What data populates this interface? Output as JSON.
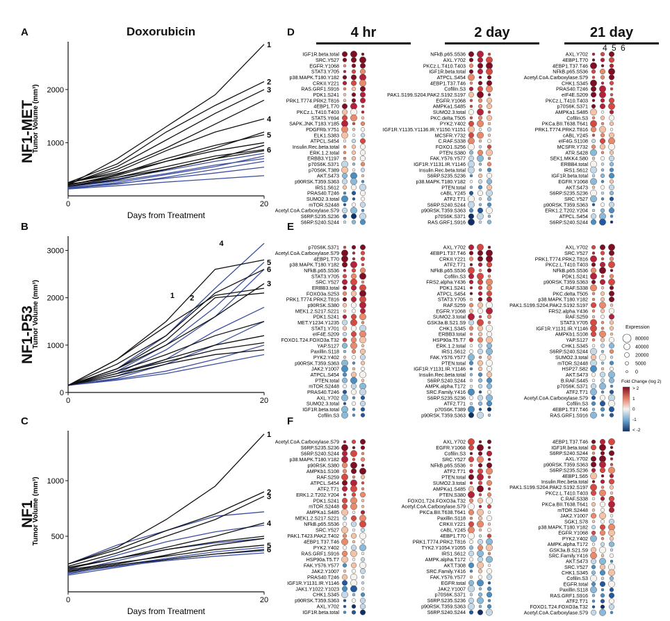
{
  "figure": {
    "plot_title": "Doxorubicin",
    "panel_letters": [
      "A",
      "B",
      "C",
      "D",
      "E",
      "F"
    ],
    "row_titles": [
      "NF1-MET",
      "NF1-P53",
      "NF1"
    ],
    "column_titles": [
      "4 hr",
      "2 day",
      "21 day"
    ],
    "sample_numbers": [
      "4",
      "5",
      "6"
    ],
    "line_color_blue": "#3c4fa0",
    "line_color_black": "#111111"
  },
  "chart_data": [
    {
      "type": "line",
      "panel": "A",
      "title": "Doxorubicin",
      "row_title": "NF1-MET",
      "xlabel": "Days from Treatment",
      "ylabel": "Tumor Volume (mm³)",
      "xlim": [
        0,
        20
      ],
      "ylim": [
        0,
        2900
      ],
      "xticks": [
        0,
        20
      ],
      "yticks": [
        1000,
        2000
      ],
      "series_x": [
        0,
        5,
        10,
        15,
        20
      ],
      "labeled_ends": [
        {
          "label": "1",
          "value": 2850
        },
        {
          "label": "2",
          "value": 2150
        },
        {
          "label": "3",
          "value": 2000
        },
        {
          "label": "4",
          "value": 1450
        },
        {
          "label": "5",
          "value": 1150
        },
        {
          "label": "6",
          "value": 870
        }
      ],
      "black_series": [
        [
          200,
          700,
          1300,
          1900,
          2850
        ],
        [
          250,
          600,
          1200,
          1700,
          2150
        ],
        [
          220,
          550,
          1050,
          1550,
          2000
        ],
        [
          250,
          450,
          850,
          1200,
          1450
        ],
        [
          200,
          400,
          700,
          950,
          1150
        ],
        [
          180,
          350,
          550,
          750,
          870
        ],
        [
          230,
          500,
          900,
          1350,
          1800
        ],
        [
          200,
          380,
          650,
          900,
          1200
        ],
        [
          180,
          300,
          500,
          700,
          950
        ],
        [
          250,
          420,
          650,
          850,
          1000
        ],
        [
          220,
          350,
          500,
          700,
          850
        ]
      ],
      "blue_series": [
        [
          160,
          300,
          500,
          700,
          950
        ],
        [
          150,
          250,
          400,
          550,
          750
        ],
        [
          180,
          320,
          480,
          650,
          800
        ],
        [
          140,
          220,
          350,
          500,
          650
        ],
        [
          130,
          190,
          260,
          320,
          380
        ],
        [
          170,
          280,
          420,
          580,
          700
        ],
        [
          150,
          230,
          330,
          430,
          540
        ]
      ]
    },
    {
      "type": "line",
      "panel": "B",
      "row_title": "NF1-P53",
      "xlabel": "",
      "ylabel": "Tumor Volume (mm³)",
      "xlim": [
        0,
        20
      ],
      "ylim": [
        0,
        3300
      ],
      "xticks": [
        0,
        20
      ],
      "yticks": [
        0,
        1000,
        2000,
        3000
      ],
      "series_x": [
        0,
        5,
        10,
        15,
        20
      ],
      "labeled_ends": [
        {
          "label": "1",
          "value": 2050,
          "x": 10
        },
        {
          "label": "2",
          "value": 2000,
          "x": 12
        },
        {
          "label": "3",
          "value": 2300
        },
        {
          "label": "4",
          "value": 3150,
          "x": 15
        },
        {
          "label": "5",
          "value": 2750
        },
        {
          "label": "6",
          "value": 2600
        }
      ],
      "black_series": [
        [
          150,
          700,
          1500,
          2600,
          2800
        ],
        [
          150,
          600,
          1200,
          2100,
          2600
        ],
        [
          150,
          500,
          1000,
          1600,
          2300
        ],
        [
          150,
          450,
          800,
          1200,
          1500
        ],
        [
          150,
          400,
          700,
          1000,
          1200
        ],
        [
          150,
          350,
          600,
          800,
          900
        ],
        [
          150,
          700,
          1400,
          2050,
          2200
        ],
        [
          150,
          500,
          1100,
          2000,
          2100
        ],
        [
          150,
          400,
          650,
          900,
          1050
        ]
      ],
      "blue_series": [
        [
          150,
          500,
          1200,
          2200,
          3150
        ],
        [
          150,
          450,
          1000,
          1800,
          2750
        ],
        [
          150,
          400,
          900,
          1600,
          2600
        ],
        [
          150,
          350,
          700,
          1300,
          1800
        ],
        [
          150,
          300,
          600,
          1000,
          1500
        ],
        [
          150,
          280,
          450,
          700,
          1000
        ],
        [
          150,
          260,
          400,
          600,
          800
        ]
      ]
    },
    {
      "type": "line",
      "panel": "C",
      "row_title": "NF1",
      "xlabel": "Days from Treatment",
      "ylabel": "Tumor Volume (mm³)",
      "xlim": [
        0,
        20
      ],
      "ylim": [
        0,
        1450
      ],
      "xticks": [
        0,
        20
      ],
      "yticks": [
        500,
        1000
      ],
      "series_x": [
        0,
        5,
        10,
        15,
        20
      ],
      "labeled_ends": [
        {
          "label": "1",
          "value": 1420
        },
        {
          "label": "2",
          "value": 900
        },
        {
          "label": "3",
          "value": 860
        },
        {
          "label": "4",
          "value": 620
        },
        {
          "label": "5",
          "value": 420
        },
        {
          "label": "6",
          "value": 380
        }
      ],
      "black_series": [
        [
          250,
          400,
          650,
          950,
          1420
        ],
        [
          250,
          380,
          550,
          700,
          900
        ],
        [
          230,
          350,
          500,
          650,
          860
        ],
        [
          220,
          300,
          400,
          500,
          620
        ],
        [
          200,
          260,
          320,
          380,
          420
        ],
        [
          180,
          240,
          290,
          340,
          380
        ],
        [
          210,
          300,
          380,
          450,
          500
        ],
        [
          190,
          250,
          330,
          420,
          480
        ]
      ],
      "blue_series": [
        [
          250,
          420,
          550,
          680,
          720
        ],
        [
          200,
          330,
          450,
          540,
          600
        ],
        [
          180,
          280,
          380,
          440,
          480
        ],
        [
          160,
          240,
          300,
          360,
          400
        ],
        [
          150,
          220,
          290,
          340,
          370
        ],
        [
          170,
          230,
          280,
          320,
          350
        ]
      ]
    },
    {
      "type": "heatmap",
      "panel": "D-F",
      "subtype": "bubble",
      "legend": {
        "size_title": "Expression",
        "size_values": [
          "80000",
          "40000",
          "20000",
          "5000",
          "0"
        ],
        "color_title": "Fold Change (log 2)",
        "color_ticks": [
          "> 2",
          "1",
          "0",
          "-1",
          "< -2"
        ]
      },
      "labels": {
        "D": [
          [
            "IGF1R.beta.total",
            "SRC.Y527",
            "EGFR.Y1068",
            "STAT3.Y705",
            "p38.MAPK.T180.Y182",
            "CRKII.Y221",
            "RAS.GRF1.S916",
            "PDK1.S241",
            "PRK1.T774.PRK2.T816",
            "4EBP1.T70",
            "PKCz.L.T410.T403",
            "STAT5.Y694",
            "SAPK.JNK.T183.Y185",
            "PDGFRb.Y751",
            "ELK1.S383",
            "ATPCL.S454",
            "Insulin.Rec.beta.total",
            "ERK.1.2.total",
            "ERBB3.Y1197",
            "p70S6K.S371",
            "p70S6K.T389",
            "AKT.S473",
            "p90RSK.T359.S363",
            "IRS1.S612",
            "PRAS40.T246",
            "SUMO2.3.total",
            "mTOR.S2448",
            "Acetyl.CoA.Carboxylase.S79",
            "S6RP.S235.S236",
            "S6RP.S240.S244"
          ],
          [
            "NFkB.p65.S536",
            "AXL.Y702",
            "PKCz.L.T410.T403",
            "IGF1R.beta.total",
            "ATPCL.S454",
            "4EBP1.T37.T46",
            "Cofilin.S3",
            "PAK1.S199.S204.PAK2.S192.S197",
            "EGFR.Y1068",
            "AMPKa1.S485",
            "SUMO2.3.total",
            "PKC.delta.T505",
            "PYK2.Y402",
            "IGF1R.Y1135.Y1136.IR.Y1150.Y1151",
            "MCSFR.Y732",
            "C.RAF.S338",
            "FOXO1.S256",
            "PTEN.S380",
            "FAK.Y576.Y577",
            "IGF1R.Y1131.IR.Y1146",
            "Insulin.Rec.beta.total",
            "S6RP.S235.S236",
            "p38.MAPK.T180.Y182",
            "PTEN.total",
            "cABL.Y245",
            "ATF2.T71",
            "S6RP.S240.S244",
            "p90RSK.T359.S363",
            "p70S6K.S371",
            "RAS.GRF1.S916"
          ],
          [
            "AXL.Y702",
            "4EBP1.T70",
            "4EBP1.T37.T46",
            "NFkB.p65.S536",
            "Acetyl.CoA.Carboxylase.S79",
            "CHK1.S345",
            "PRAS40.T246",
            "eIF4E.S209",
            "PKCz.L.T410.T403",
            "p70S6K.S371",
            "AMPKa1.S485",
            "Cofilin.S3",
            "PKCa.BII.T638.T641",
            "PRK1.T774.PRK2.T816",
            "cABL.Y245",
            "eIF4G.S1108",
            "MCSFR.Y732",
            "ATR.S428",
            "SEK1.MKK4.S80",
            "ERBB4.total",
            "IRS1.S612",
            "IGF1R.beta.total",
            "EGFR.Y1068",
            "AKT.S473",
            "S6RP.S235.S236",
            "SRC.Y527",
            "p90RSK.T359.S363",
            "ERK1.2.T202.Y204",
            "ATPCL.S454",
            "S6RP.S240.S244"
          ]
        ],
        "E": [
          [
            "p70S6K.S371",
            "Acetyl.CoA.Carboxylase.S79",
            "4EBP1.T70",
            "p38.MAPK.T180.Y182",
            "NFkB.p65.S536",
            "STAT3.Y705",
            "SRC.Y527",
            "ERBB3.total",
            "FOXO3a.S253",
            "PRK1.T774.PRK2.T816",
            "p90RSK.S380",
            "MEK1.2.S217.S221",
            "PDK1.S241",
            "MET.Y1234.Y1235",
            "STAT1.Y701",
            "eIF4E.S209",
            "FOXO1.T24.FOXO3a.T32",
            "YAP.S127",
            "Paxillin.S118",
            "PYK2.Y402",
            "p90RSK.T359.S363",
            "JAK2.Y1007",
            "ATPCL.S454",
            "PTEN.total",
            "mTOR.S2448",
            "PRAS40.T246",
            "AXL.Y702",
            "SUMO2.3.total",
            "IGF1R.beta.total",
            "Cofilin.S3"
          ],
          [
            "AXL.Y702",
            "4EBP1.T37.T46",
            "CRKII.Y221",
            "ATF2.T71",
            "NFkB.p65.S536",
            "Cofilin.S3",
            "FRS2.alpha.Y436",
            "PDK1.S241",
            "ATPCL.S454",
            "STAT3.Y705",
            "RAF.S259",
            "EGFR.Y1068",
            "SUMO2.3.total",
            "GSK3a.B.S21.S9",
            "CHK1.S345",
            "ERBB3.total",
            "HSP90a.T5.T7",
            "ERK.1.2.total",
            "IRS1.S612",
            "FAK.Y576.Y577",
            "PTEN.total",
            "IGF1R.Y1131.IR.Y1146",
            "Insulin.Rec.beta.total",
            "S6RP.S240.S244",
            "AMPK.alpha.T172",
            "SRC.Family.Y416",
            "S6RP.S235.S236",
            "ATF2.T71",
            "p70S6K.T389",
            "p90RSK.T359.S363"
          ],
          [
            "AXL.Y702",
            "SRC.Y527",
            "PRK1.T774.PRK2.T816",
            "PKCz.L.T410.T403",
            "NFkB.p65.S536",
            "PDK1.S241",
            "p90RSK.T359.S363",
            "C.RAF.S338",
            "PKC.delta.T505",
            "p38.MAPK.T180.Y182",
            "PAK1.S199.S204.PAK2.S192.S197",
            "FRS2.alpha.Y436",
            "RAF.S259",
            "STAT3.Y705",
            "IGF1R.Y1131.IR.Y1146",
            "AMPKb1.S108",
            "YAP.S127",
            "CHK1.S345",
            "S6RP.S240.S244",
            "SUMO2.3.total",
            "mTOR.S2448",
            "HSP27.S82",
            "AKT.S473",
            "B.RAF.S445",
            "p70S6K.S371",
            "ATF2.T71",
            "Acetyl.CoA.Carboxylase.S79",
            "Cofilin.S3",
            "4EBP1.T37.T46",
            "RAS.GRF1.S916"
          ]
        ],
        "F": [
          [
            "Acetyl.CoA.Carboxylase.S79",
            "S6RP.S235.S236",
            "S6RP.S240.S244",
            "p38.MAPK.T180.Y182",
            "p90RSK.S380",
            "AMPKb1.S108",
            "RAF.S259",
            "ATPCL.S454",
            "ATF2.T71",
            "ERK1.2.T202.Y204",
            "PDK1.S241",
            "mTOR.S2448",
            "AMPKa1.S485",
            "MEK1.2.S217.S221",
            "NFkB.p65.S536",
            "SRC.Y527",
            "PAK1.T423.PAK2.T402",
            "4EBP1.T37.T46",
            "PYK2.Y402",
            "RAS.GRF1.S916",
            "HSP90a.T5.T7",
            "FAK.Y576.Y577",
            "JAK2.Y1007",
            "PRAS40.T246",
            "IGF1R.Y1131.IR.Y1146",
            "JAK1.Y1022.Y1023",
            "CHK1.S345",
            "p90RSK.T359.S363",
            "AXL.Y702",
            "IGF1R.beta.total"
          ],
          [
            "AXL.Y702",
            "EGFR.Y1068",
            "Cofilin.S3",
            "SRC.Y527",
            "NFkB.p65.S536",
            "ATF2.T71",
            "PTEN.total",
            "SUMO2.3.total",
            "AMPKa1.S485",
            "PTEN.S380",
            "FOXO1.T24.FOXO3a.T32",
            "Acetyl.CoA.Carboxylase.S79",
            "PKCa.BII.T638.T641",
            "Paxillin.S118",
            "CRKII.Y221",
            "cABL.Y245",
            "4EBP1.T70",
            "PRK1.T774.PRK2.T816",
            "TYK2.Y1054.Y1055",
            "IRS1.S612",
            "AMPK.alpha.T172",
            "AKT.T308",
            "SRC.Family.Y416",
            "FAK.Y576.Y577",
            "EGFR.total",
            "JAK2.Y1007",
            "p70S6K.S371",
            "S6RP.S235.S236",
            "p90RSK.T359.S363",
            "S6RP.S240.S244"
          ],
          [
            "4EBP1.T37.T46",
            "IGF1R.beta.total",
            "S6RP.S240.S244",
            "AXL.Y702",
            "p90RSK.T359.S363",
            "S6RP.S235.S236",
            "4EBP1.S65",
            "Insulin.Rec.beta.total",
            "PAK1.S199.S204.PAK2.S192.S197",
            "PKCz.L.T410.T403",
            "C.RAF.S338",
            "PKCa.BII.T638.T641",
            "mTOR.S2448",
            "JAK2.Y1007",
            "SGK1.S78",
            "p38.MAPK.T180.Y182",
            "EGFR.Y1068",
            "PYK2.Y402",
            "AMPK.alpha.T172",
            "GSK3a.B.S21.S9",
            "SRC.Family.Y416",
            "AKT.S473",
            "SRC.Y527",
            "CHK1.S345",
            "Cofilin.S3",
            "EGFR.total",
            "Paxillin.S118",
            "RAS.GRF1.S916",
            "ATF2.T71",
            "FOXO1.T24.FOXO3a.T32",
            "Acetyl.CoA.Carboxylase.S79"
          ]
        ]
      }
    }
  ]
}
